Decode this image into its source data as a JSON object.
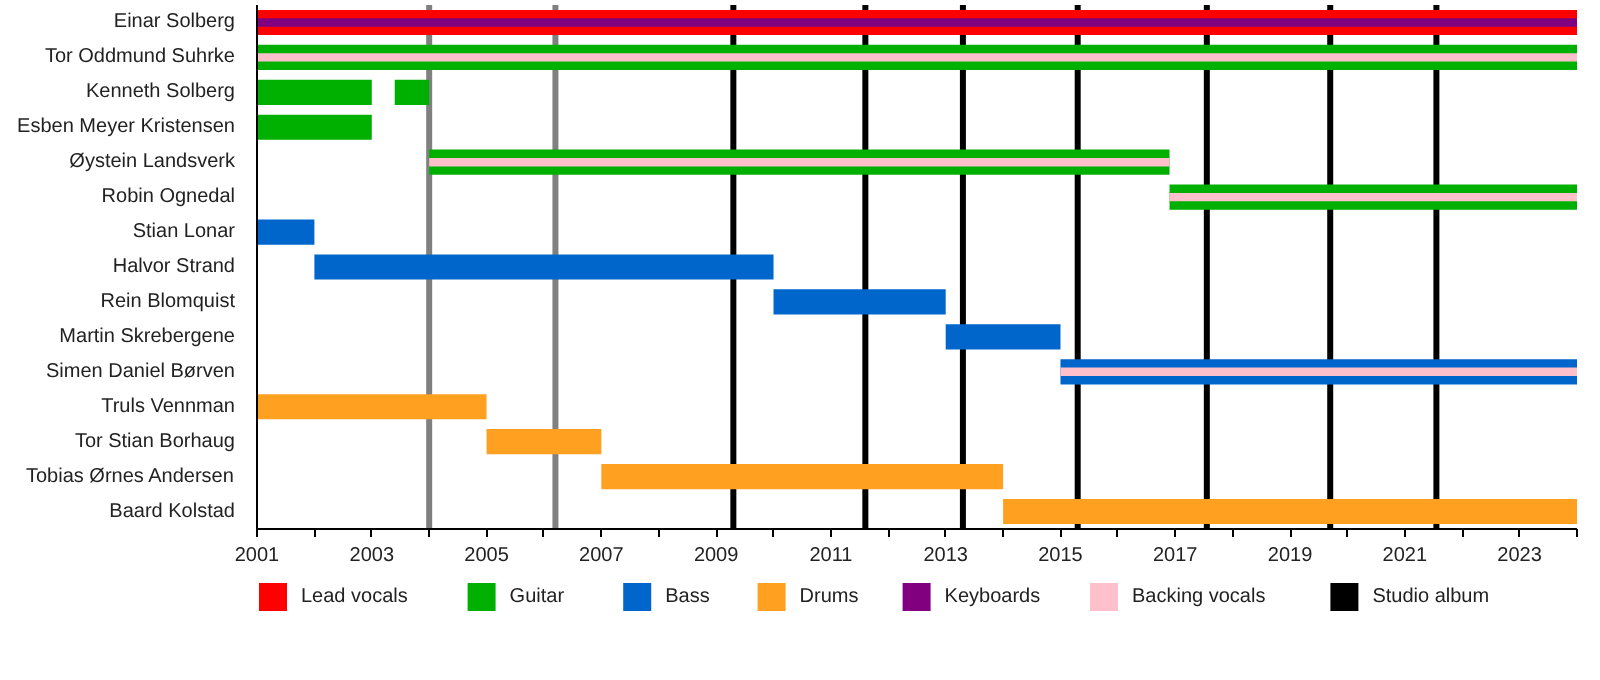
{
  "chart_data": {
    "type": "bar",
    "orientation": "horizontal",
    "categories": [
      "Einar Solberg",
      "Tor Oddmund Suhrke",
      "Kenneth Solberg",
      "Esben Meyer Kristensen",
      "Øystein Landsverk",
      "Robin Ognedal",
      "Stian Lonar",
      "Halvor Strand",
      "Rein Blomquist",
      "Martin Skrebergene",
      "Simen Daniel Børven",
      "Truls Vennman",
      "Tor Stian Borhaug",
      "Tobias Ørnes Andersen",
      "Baard Kolstad"
    ],
    "series": [
      {
        "name": "Lead vocals",
        "color": "#ff0000",
        "base": [
          2001,
          null,
          null,
          null,
          null,
          null,
          null,
          null,
          null,
          null,
          null,
          null,
          null,
          null,
          null
        ],
        "values": [
          23,
          null,
          null,
          null,
          null,
          null,
          null,
          null,
          null,
          null,
          null,
          null,
          null,
          null,
          null
        ]
      },
      {
        "name": "Guitar",
        "color": "#00b000",
        "base": [
          null,
          2001,
          2001,
          2001,
          2004,
          2016.9,
          null,
          null,
          null,
          null,
          null,
          null,
          null,
          null,
          null
        ],
        "values": [
          null,
          23,
          2,
          2,
          12.9,
          7.1,
          null,
          null,
          null,
          null,
          null,
          null,
          null,
          null,
          null
        ]
      },
      {
        "color": "#00b000",
        "base": [
          null,
          null,
          2003.4,
          null,
          null,
          null,
          null,
          null,
          null,
          null,
          null,
          null,
          null,
          null,
          null
        ],
        "values": [
          null,
          null,
          0.6,
          null,
          null,
          null,
          null,
          null,
          null,
          null,
          null,
          null,
          null,
          null,
          null
        ]
      },
      {
        "name": "Bass",
        "color": "#0066cc",
        "base": [
          null,
          null,
          null,
          null,
          null,
          null,
          2001,
          2002,
          2010,
          2013,
          2015,
          null,
          null,
          null,
          null
        ],
        "values": [
          null,
          null,
          null,
          null,
          null,
          null,
          1,
          8,
          3,
          2,
          9,
          null,
          null,
          null,
          null
        ]
      },
      {
        "name": "Drums",
        "color": "#ffa020",
        "base": [
          null,
          null,
          null,
          null,
          null,
          null,
          null,
          null,
          null,
          null,
          null,
          2001,
          2005,
          2007,
          2014
        ],
        "values": [
          null,
          null,
          null,
          null,
          null,
          null,
          null,
          null,
          null,
          null,
          null,
          4,
          2,
          7,
          10
        ]
      },
      {
        "name": "Keyboards",
        "color": "#800080",
        "base": [
          2001,
          null,
          null,
          null,
          null,
          null,
          null,
          null,
          null,
          null,
          null,
          null,
          null,
          null,
          null
        ],
        "values": [
          23,
          null,
          null,
          null,
          null,
          null,
          null,
          null,
          null,
          null,
          null,
          null,
          null,
          null,
          null
        ]
      },
      {
        "name": "Backing vocals",
        "color": "#ffc0cb",
        "base": [
          null,
          2001,
          null,
          null,
          2004,
          2016.9,
          null,
          null,
          null,
          null,
          2015,
          null,
          null,
          null,
          null
        ],
        "values": [
          null,
          23,
          null,
          null,
          12.9,
          7.1,
          null,
          null,
          null,
          null,
          9,
          null,
          null,
          null,
          null
        ]
      }
    ],
    "xlim": [
      2001,
      2024
    ],
    "xticks": [
      2001,
      {
        "value": 2002,
        "label": null
      },
      2003,
      {
        "value": 2004,
        "label": null
      },
      2005,
      {
        "value": 2006,
        "label": null
      },
      2007,
      {
        "value": 2008,
        "label": null
      },
      2009,
      {
        "value": 2010,
        "label": null
      },
      2011,
      {
        "value": 2012,
        "label": null
      },
      2013,
      {
        "value": 2014,
        "label": null
      },
      2015,
      {
        "value": 2016,
        "label": null
      },
      2017,
      {
        "value": 2018,
        "label": null
      },
      2019,
      {
        "value": 2020,
        "label": null
      },
      2021,
      {
        "value": 2022,
        "label": null
      },
      2023,
      {
        "value": 2024,
        "label": null
      }
    ],
    "ref_lines": [
      {
        "axis": "x",
        "value": 2004.0,
        "label": null,
        "color": "#808080"
      },
      {
        "axis": "x",
        "value": 2006.2,
        "label": null,
        "color": "#808080"
      },
      {
        "axis": "x",
        "value": 2009.3,
        "label": "Studio album",
        "color": "#000000"
      },
      {
        "axis": "x",
        "value": 2011.6,
        "label": null,
        "color": "#000000"
      },
      {
        "axis": "x",
        "value": 2013.3,
        "label": null,
        "color": "#000000"
      },
      {
        "axis": "x",
        "value": 2015.3,
        "label": null,
        "color": "#000000"
      },
      {
        "axis": "x",
        "value": 2017.55,
        "label": null,
        "color": "#000000"
      },
      {
        "axis": "x",
        "value": 2019.7,
        "label": null,
        "color": "#000000"
      },
      {
        "axis": "x",
        "value": 2021.55,
        "label": null,
        "color": "#000000"
      }
    ],
    "grid": false,
    "legend": "bottom"
  }
}
